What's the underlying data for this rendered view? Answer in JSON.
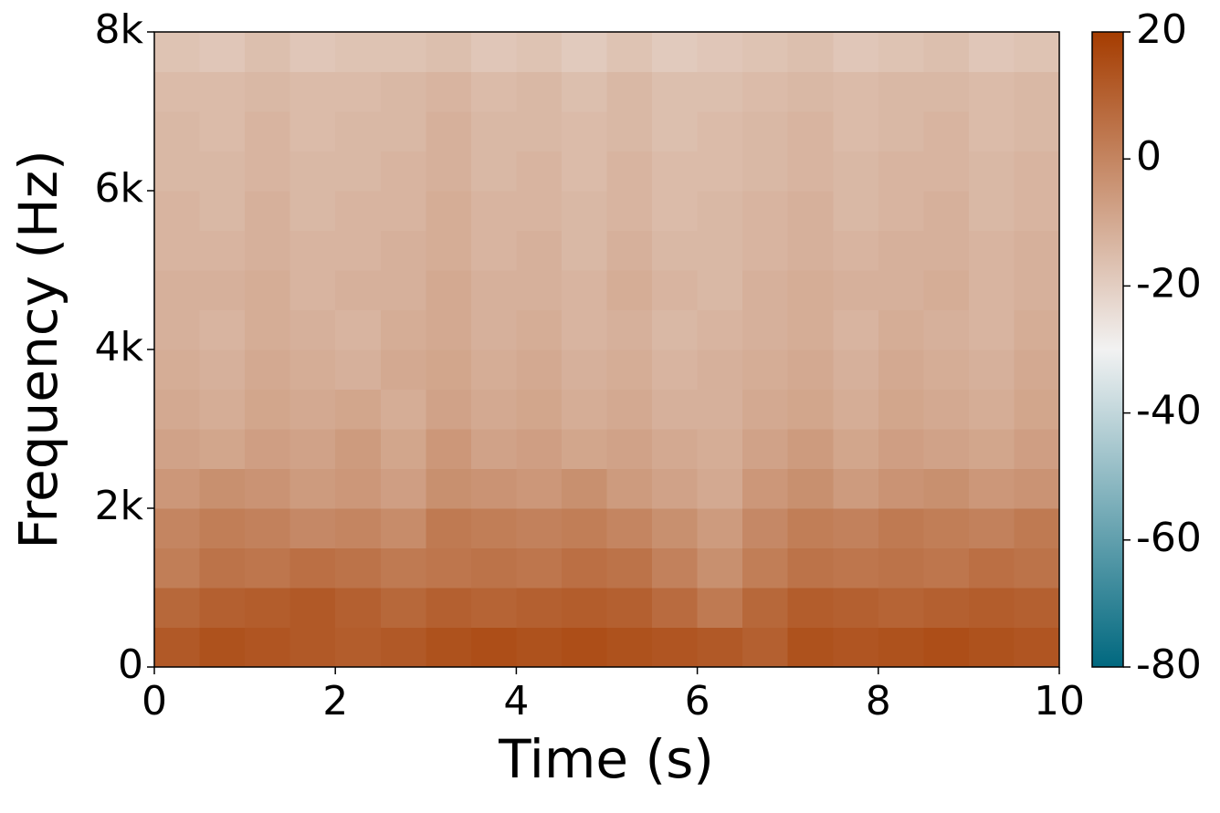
{
  "chart_data": {
    "type": "heatmap",
    "xlabel": "Time (s)",
    "ylabel": "Frequency (Hz)",
    "xlim": [
      0,
      10
    ],
    "ylim": [
      0,
      8000
    ],
    "xticks": [
      0,
      2,
      4,
      6,
      8,
      10
    ],
    "yticks": [
      0,
      {
        "value": 2000,
        "label": "2k"
      },
      {
        "value": 4000,
        "label": "4k"
      },
      {
        "value": 6000,
        "label": "6k"
      },
      {
        "value": 8000,
        "label": "8k"
      }
    ],
    "z": [
      [
        12,
        14,
        13,
        12,
        11,
        12,
        14,
        15,
        14,
        15,
        14,
        13,
        12,
        10,
        14,
        13,
        14,
        15,
        14,
        13
      ],
      [
        8,
        10,
        11,
        12,
        10,
        8,
        10,
        9,
        10,
        11,
        10,
        7,
        3,
        8,
        11,
        10,
        9,
        10,
        11,
        10
      ],
      [
        2,
        5,
        4,
        6,
        5,
        3,
        4,
        5,
        4,
        6,
        5,
        1,
        -3,
        2,
        5,
        4,
        5,
        4,
        6,
        5
      ],
      [
        0,
        2,
        1,
        -1,
        0,
        -2,
        3,
        2,
        1,
        2,
        0,
        -3,
        -6,
        -1,
        2,
        1,
        3,
        2,
        1,
        3
      ],
      [
        -5,
        -3,
        -4,
        -6,
        -5,
        -7,
        -3,
        -4,
        -5,
        -3,
        -6,
        -8,
        -10,
        -5,
        -3,
        -6,
        -4,
        -3,
        -5,
        -4
      ],
      [
        -8,
        -9,
        -7,
        -8,
        -6,
        -9,
        -5,
        -8,
        -7,
        -9,
        -8,
        -10,
        -11,
        -8,
        -6,
        -9,
        -7,
        -8,
        -9,
        -7
      ],
      [
        -10,
        -11,
        -9,
        -10,
        -9,
        -11,
        -8,
        -10,
        -9,
        -11,
        -10,
        -12,
        -12,
        -10,
        -9,
        -11,
        -9,
        -10,
        -11,
        -9
      ],
      [
        -11,
        -12,
        -10,
        -11,
        -12,
        -10,
        -9,
        -11,
        -10,
        -12,
        -11,
        -13,
        -12,
        -11,
        -10,
        -12,
        -10,
        -11,
        -12,
        -10
      ],
      [
        -12,
        -13,
        -11,
        -12,
        -13,
        -11,
        -10,
        -12,
        -11,
        -13,
        -12,
        -14,
        -13,
        -12,
        -11,
        -13,
        -11,
        -12,
        -13,
        -11
      ],
      [
        -12,
        -12,
        -11,
        -13,
        -12,
        -12,
        -10,
        -12,
        -12,
        -13,
        -11,
        -13,
        -14,
        -12,
        -11,
        -12,
        -12,
        -11,
        -13,
        -12
      ],
      [
        -13,
        -13,
        -12,
        -13,
        -13,
        -12,
        -11,
        -13,
        -12,
        -14,
        -12,
        -14,
        -14,
        -13,
        -12,
        -13,
        -12,
        -12,
        -13,
        -12
      ],
      [
        -13,
        -14,
        -12,
        -14,
        -13,
        -13,
        -11,
        -13,
        -13,
        -14,
        -13,
        -15,
        -14,
        -13,
        -12,
        -14,
        -13,
        -12,
        -14,
        -13
      ],
      [
        -14,
        -14,
        -13,
        -14,
        -14,
        -13,
        -12,
        -14,
        -13,
        -15,
        -13,
        -15,
        -15,
        -14,
        -13,
        -14,
        -13,
        -13,
        -14,
        -13
      ],
      [
        -14,
        -15,
        -13,
        -15,
        -14,
        -14,
        -12,
        -14,
        -14,
        -15,
        -14,
        -16,
        -15,
        -14,
        -13,
        -15,
        -14,
        -13,
        -15,
        -14
      ],
      [
        -15,
        -15,
        -14,
        -15,
        -15,
        -14,
        -13,
        -15,
        -14,
        -16,
        -14,
        -16,
        -16,
        -15,
        -14,
        -15,
        -14,
        -14,
        -15,
        -14
      ],
      [
        -17,
        -18,
        -16,
        -18,
        -17,
        -17,
        -16,
        -18,
        -17,
        -19,
        -17,
        -19,
        -18,
        -17,
        -16,
        -18,
        -17,
        -16,
        -18,
        -17
      ]
    ],
    "colorbar": {
      "lim": [
        -80,
        20
      ],
      "ticks": [
        -80,
        -60,
        -40,
        -20,
        0,
        20
      ]
    },
    "colorscale": [
      [
        -80,
        "#00687f"
      ],
      [
        -30,
        "#f2f2f2"
      ],
      [
        20,
        "#a53c00"
      ]
    ]
  }
}
